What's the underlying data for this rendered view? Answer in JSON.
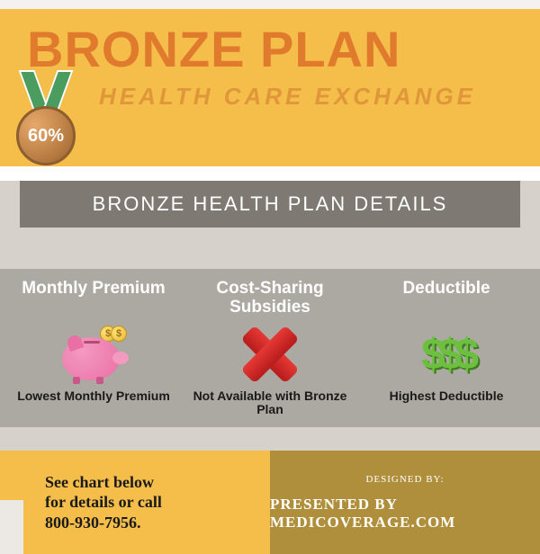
{
  "header": {
    "title": "BRONZE PLAN",
    "subtitle": "HEALTH CARE EXCHANGE",
    "medal_percent": "60%",
    "bg_color": "#f5bd49",
    "title_color": "#e07b2e",
    "subtitle_color": "#e0973a"
  },
  "details_heading": "BRONZE HEALTH PLAN DETAILS",
  "cards": [
    {
      "title": "Monthly Premium",
      "caption": "Lowest Monthly Premium",
      "icon": "piggy-bank"
    },
    {
      "title": "Cost-Sharing Subsidies",
      "caption": "Not Available with Bronze Plan",
      "icon": "x-mark"
    },
    {
      "title": "Deductible",
      "caption": "Highest Deductible",
      "icon": "dollars"
    }
  ],
  "footer": {
    "cta_line1": "See chart below",
    "cta_line2": "for details or call",
    "cta_line3": "800-930-7956.",
    "designed_label": "DESIGNED BY:",
    "presented": "PRESENTED BY MEDICOVERAGE.COM"
  },
  "colors": {
    "mid_bg": "#d6d2cb",
    "card_strip_bg": "#aca8a2",
    "band_bg": "#7e7a73",
    "footer_left_bg": "#f5bd49",
    "footer_right_bg": "#b08f3c",
    "dollar_green": "#6cbf3f",
    "x_red": "#e53935"
  }
}
